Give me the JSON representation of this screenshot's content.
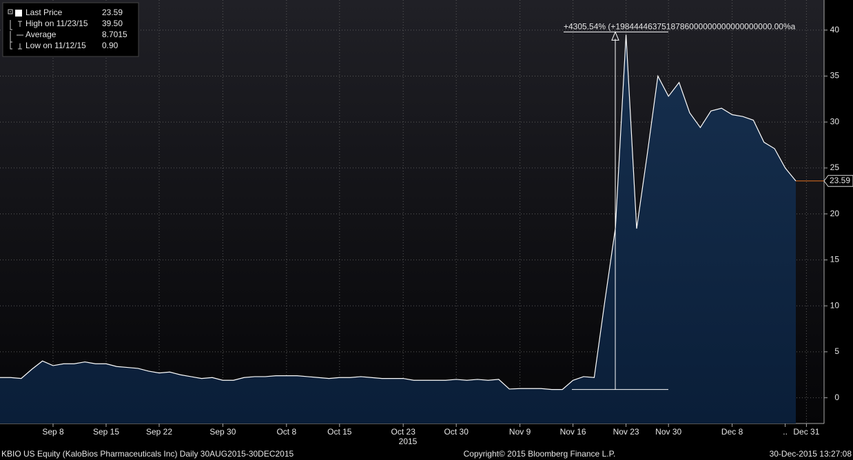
{
  "chart_data": {
    "type": "area",
    "color": "#0d2442",
    "line_color": "#ffffff",
    "grid": true,
    "categories": [
      null,
      null,
      null,
      null,
      null,
      "Sep 8",
      null,
      null,
      null,
      null,
      "Sep 15",
      null,
      null,
      null,
      null,
      "Sep 22",
      null,
      null,
      null,
      null,
      null,
      "Sep 30",
      null,
      null,
      null,
      null,
      null,
      "Oct 8",
      null,
      null,
      null,
      null,
      "Oct 15",
      null,
      null,
      null,
      null,
      null,
      "Oct 23",
      null,
      null,
      null,
      null,
      "Oct 30",
      null,
      null,
      null,
      null,
      null,
      "Nov 9",
      null,
      null,
      null,
      null,
      "Nov 16",
      null,
      null,
      null,
      null,
      "Nov 23",
      null,
      null,
      null,
      "Nov 30",
      null,
      null,
      null,
      null,
      null,
      "Dec 8",
      null,
      null,
      null,
      null,
      "..",
      null,
      "Dec 31"
    ],
    "values": [
      2.2,
      2.2,
      2.1,
      3.1,
      4.0,
      3.5,
      3.7,
      3.7,
      3.9,
      3.7,
      3.7,
      3.4,
      3.3,
      3.2,
      2.9,
      2.7,
      2.8,
      2.5,
      2.3,
      2.1,
      2.2,
      1.9,
      1.9,
      2.2,
      2.3,
      2.3,
      2.4,
      2.4,
      2.4,
      2.3,
      2.2,
      2.1,
      2.2,
      2.2,
      2.3,
      2.2,
      2.1,
      2.1,
      2.1,
      1.9,
      1.9,
      1.9,
      1.9,
      2.0,
      1.9,
      2.0,
      1.9,
      2.0,
      0.95,
      1.0,
      1.0,
      1.0,
      0.9,
      0.9,
      1.9,
      2.3,
      2.2,
      10.5,
      18.5,
      39.5,
      18.4,
      26.5,
      35.0,
      32.8,
      34.3,
      31.0,
      29.4,
      31.2,
      31.5,
      30.8,
      30.6,
      30.2,
      27.8,
      27.1,
      25.0,
      23.59,
      null
    ],
    "ylim": [
      -2.8,
      42.9
    ],
    "yticks": [
      0,
      5,
      10,
      15,
      20,
      25,
      30,
      35,
      40
    ],
    "x_sublabel": "2015",
    "annotation": "+4305.54% (+1984444637518786000000000000000000.00%a",
    "legend_box": [
      {
        "label": "Last Price",
        "value": "23.59"
      },
      {
        "label": "High on 11/23/15",
        "value": "39.50"
      },
      {
        "label": "Average",
        "value": "8.7015"
      },
      {
        "label": "Low on 11/12/15",
        "value": "0.90"
      }
    ]
  },
  "footer": {
    "left": "KBIO US Equity (KaloBios Pharmaceuticals Inc)  Daily 30AUG2015-30DEC2015",
    "center": "Copyright© 2015 Bloomberg Finance L.P.",
    "right": "30-Dec-2015 13:27:08"
  }
}
